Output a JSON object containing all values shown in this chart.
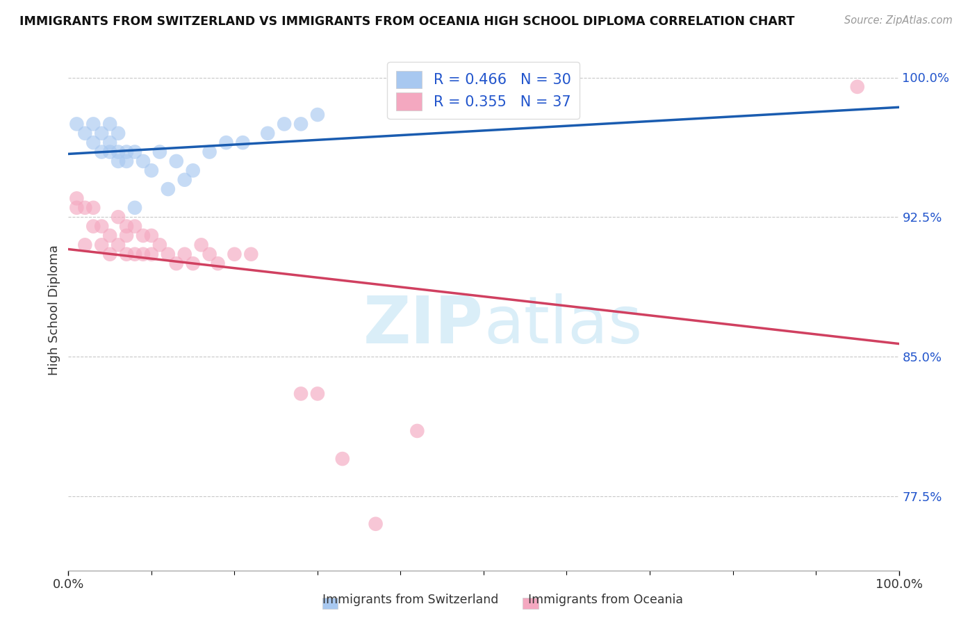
{
  "title": "IMMIGRANTS FROM SWITZERLAND VS IMMIGRANTS FROM OCEANIA HIGH SCHOOL DIPLOMA CORRELATION CHART",
  "source": "Source: ZipAtlas.com",
  "ylabel": "High School Diploma",
  "xlim": [
    0.0,
    1.0
  ],
  "ylim": [
    0.735,
    1.015
  ],
  "switzerland_x": [
    0.01,
    0.02,
    0.03,
    0.03,
    0.04,
    0.04,
    0.05,
    0.05,
    0.05,
    0.06,
    0.06,
    0.06,
    0.07,
    0.07,
    0.08,
    0.08,
    0.09,
    0.1,
    0.11,
    0.12,
    0.13,
    0.14,
    0.15,
    0.17,
    0.19,
    0.21,
    0.24,
    0.26,
    0.28,
    0.3
  ],
  "switzerland_y": [
    0.975,
    0.97,
    0.975,
    0.965,
    0.96,
    0.97,
    0.96,
    0.965,
    0.975,
    0.955,
    0.96,
    0.97,
    0.955,
    0.96,
    0.93,
    0.96,
    0.955,
    0.95,
    0.96,
    0.94,
    0.955,
    0.945,
    0.95,
    0.96,
    0.965,
    0.965,
    0.97,
    0.975,
    0.975,
    0.98
  ],
  "oceania_x": [
    0.01,
    0.01,
    0.02,
    0.02,
    0.03,
    0.03,
    0.04,
    0.04,
    0.05,
    0.05,
    0.06,
    0.06,
    0.07,
    0.07,
    0.07,
    0.08,
    0.08,
    0.09,
    0.09,
    0.1,
    0.1,
    0.11,
    0.12,
    0.13,
    0.14,
    0.15,
    0.16,
    0.17,
    0.18,
    0.2,
    0.22,
    0.28,
    0.3,
    0.33,
    0.37,
    0.42,
    0.95
  ],
  "oceania_y": [
    0.935,
    0.93,
    0.93,
    0.91,
    0.93,
    0.92,
    0.92,
    0.91,
    0.915,
    0.905,
    0.925,
    0.91,
    0.92,
    0.915,
    0.905,
    0.92,
    0.905,
    0.915,
    0.905,
    0.915,
    0.905,
    0.91,
    0.905,
    0.9,
    0.905,
    0.9,
    0.91,
    0.905,
    0.9,
    0.905,
    0.905,
    0.83,
    0.83,
    0.795,
    0.76,
    0.81,
    0.995
  ],
  "R_switzerland": 0.466,
  "N_switzerland": 30,
  "R_oceania": 0.355,
  "N_oceania": 37,
  "switzerland_color": "#a8c8f0",
  "oceania_color": "#f4a8c0",
  "switzerland_line_color": "#1a5cb0",
  "oceania_line_color": "#d04060",
  "legend_color": "#2255cc",
  "background_color": "#ffffff",
  "grid_color": "#c8c8c8",
  "ytick_values": [
    0.775,
    0.85,
    0.925,
    1.0
  ],
  "ytick_labels": [
    "77.5%",
    "85.0%",
    "92.5%",
    "100.0%"
  ]
}
